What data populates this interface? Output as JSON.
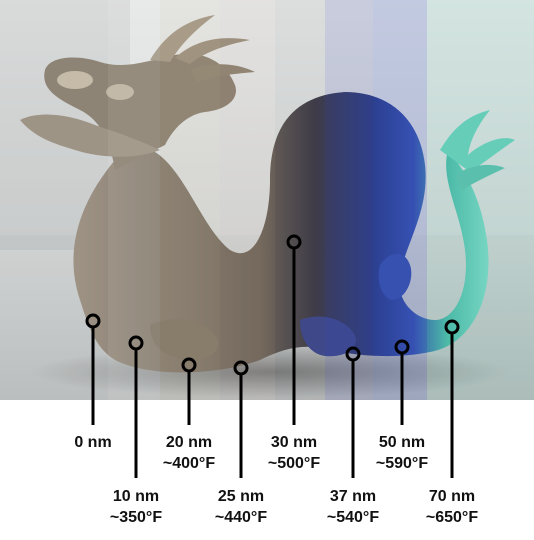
{
  "image": {
    "subject": "dragon-statue",
    "colors": {
      "background_wall": "#d9dcdc",
      "floor": "#c9cccc",
      "base_metal": "#8d8272",
      "dark_metal": "#4a4650",
      "blue_tint": "#3a4c9a",
      "teal_tint": "#5fc7b3"
    }
  },
  "callouts": [
    {
      "thickness": "0 nm",
      "temperature": ""
    },
    {
      "thickness": "10 nm",
      "temperature": "~350°F"
    },
    {
      "thickness": "20 nm",
      "temperature": "~400°F"
    },
    {
      "thickness": "25 nm",
      "temperature": "~440°F"
    },
    {
      "thickness": "30 nm",
      "temperature": "~500°F"
    },
    {
      "thickness": "37 nm",
      "temperature": "~540°F"
    },
    {
      "thickness": "50 nm",
      "temperature": "~590°F"
    },
    {
      "thickness": "70 nm",
      "temperature": "~650°F"
    }
  ]
}
